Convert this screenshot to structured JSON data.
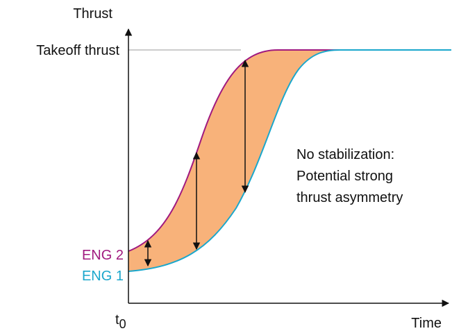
{
  "axes": {
    "y_label": "Thrust",
    "x_label": "Time",
    "origin": {
      "label": "t",
      "subscript": "0"
    }
  },
  "reference": {
    "label": "Takeoff thrust"
  },
  "curves": [
    {
      "name": "ENG 2",
      "color": "#a0197f"
    },
    {
      "name": "ENG 1",
      "color": "#1aa7cc"
    }
  ],
  "annotation": {
    "lines": [
      "No stabilization:",
      "Potential strong",
      "thrust asymmetry"
    ]
  }
}
